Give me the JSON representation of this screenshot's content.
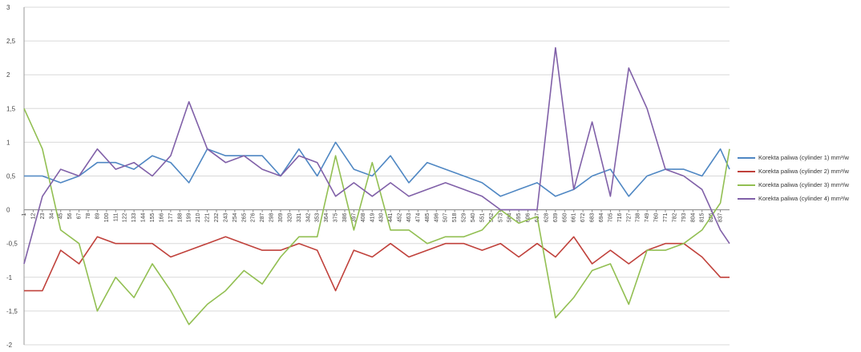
{
  "chart_data": {
    "type": "line",
    "title": "",
    "xlabel": "",
    "ylabel": "",
    "ylim": [
      -2,
      3
    ],
    "y_ticks": [
      "3",
      "2,5",
      "2",
      "1,5",
      "1",
      "0,5",
      "0",
      "-0,5",
      "-1",
      "-1,5",
      "-2"
    ],
    "x_tick_labels": [
      "1",
      "12",
      "23",
      "34",
      "45",
      "56",
      "67",
      "78",
      "89",
      "100",
      "111",
      "122",
      "133",
      "144",
      "155",
      "166",
      "177",
      "188",
      "199",
      "210",
      "221",
      "232",
      "243",
      "254",
      "265",
      "276",
      "287",
      "298",
      "309",
      "320",
      "331",
      "342",
      "353",
      "364",
      "375",
      "386",
      "397",
      "408",
      "419",
      "430",
      "441",
      "452",
      "463",
      "474",
      "485",
      "496",
      "507",
      "518",
      "529",
      "540",
      "551",
      "562",
      "573",
      "584",
      "595",
      "606",
      "617",
      "628",
      "639",
      "650",
      "661",
      "672",
      "683",
      "694",
      "705",
      "716",
      "727",
      "738",
      "749",
      "760",
      "771",
      "782",
      "793",
      "804",
      "815",
      "826",
      "837"
    ],
    "grid": true,
    "legend_position": "right",
    "x": [
      1,
      23,
      45,
      67,
      89,
      111,
      133,
      155,
      177,
      199,
      221,
      243,
      265,
      287,
      309,
      331,
      353,
      375,
      397,
      419,
      441,
      463,
      485,
      507,
      529,
      551,
      573,
      595,
      617,
      639,
      661,
      683,
      705,
      727,
      749,
      771,
      793,
      815,
      837,
      848
    ],
    "series": [
      {
        "name": "Korekta paliwa  (cylinder 1) mm³/w",
        "color": "#4f87c3",
        "values": [
          0.5,
          0.5,
          0.4,
          0.5,
          0.7,
          0.7,
          0.6,
          0.8,
          0.7,
          0.4,
          0.9,
          0.8,
          0.8,
          0.8,
          0.5,
          0.9,
          0.5,
          1.0,
          0.6,
          0.5,
          0.8,
          0.4,
          0.7,
          0.6,
          0.5,
          0.4,
          0.2,
          0.3,
          0.4,
          0.2,
          0.3,
          0.5,
          0.6,
          0.2,
          0.5,
          0.6,
          0.6,
          0.5,
          0.9,
          0.6
        ]
      },
      {
        "name": "Korekta paliwa  (cylinder 2) mm³/w",
        "color": "#c0413b",
        "values": [
          -1.2,
          -1.2,
          -0.6,
          -0.8,
          -0.4,
          -0.5,
          -0.5,
          -0.5,
          -0.7,
          -0.6,
          -0.5,
          -0.4,
          -0.5,
          -0.6,
          -0.6,
          -0.5,
          -0.6,
          -1.2,
          -0.6,
          -0.7,
          -0.5,
          -0.7,
          -0.6,
          -0.5,
          -0.5,
          -0.6,
          -0.5,
          -0.7,
          -0.5,
          -0.7,
          -0.4,
          -0.8,
          -0.6,
          -0.8,
          -0.6,
          -0.5,
          -0.5,
          -0.7,
          -1.0,
          -1.0
        ]
      },
      {
        "name": "Korekta paliwa  (cylinder 3) mm³/w",
        "color": "#92bf52",
        "values": [
          1.5,
          0.9,
          -0.3,
          -0.5,
          -1.5,
          -1.0,
          -1.3,
          -0.8,
          -1.2,
          -1.7,
          -1.4,
          -1.2,
          -0.9,
          -1.1,
          -0.7,
          -0.4,
          -0.4,
          0.8,
          -0.3,
          0.7,
          -0.3,
          -0.3,
          -0.5,
          -0.4,
          -0.4,
          -0.3,
          0.0,
          -0.2,
          -0.1,
          -1.6,
          -1.3,
          -0.9,
          -0.8,
          -1.4,
          -0.6,
          -0.6,
          -0.5,
          -0.3,
          0.1,
          0.9
        ]
      },
      {
        "name": "Korekta paliwa  (cylinder 4) mm³/w",
        "color": "#8060a8",
        "values": [
          -0.8,
          0.2,
          0.6,
          0.5,
          0.9,
          0.6,
          0.7,
          0.5,
          0.8,
          1.6,
          0.9,
          0.7,
          0.8,
          0.6,
          0.5,
          0.8,
          0.7,
          0.2,
          0.4,
          0.2,
          0.4,
          0.2,
          0.3,
          0.4,
          0.3,
          0.2,
          0.0,
          0.0,
          0.0,
          2.4,
          0.3,
          1.3,
          0.2,
          2.1,
          1.5,
          0.6,
          0.5,
          0.3,
          -0.3,
          -0.5
        ]
      }
    ]
  }
}
